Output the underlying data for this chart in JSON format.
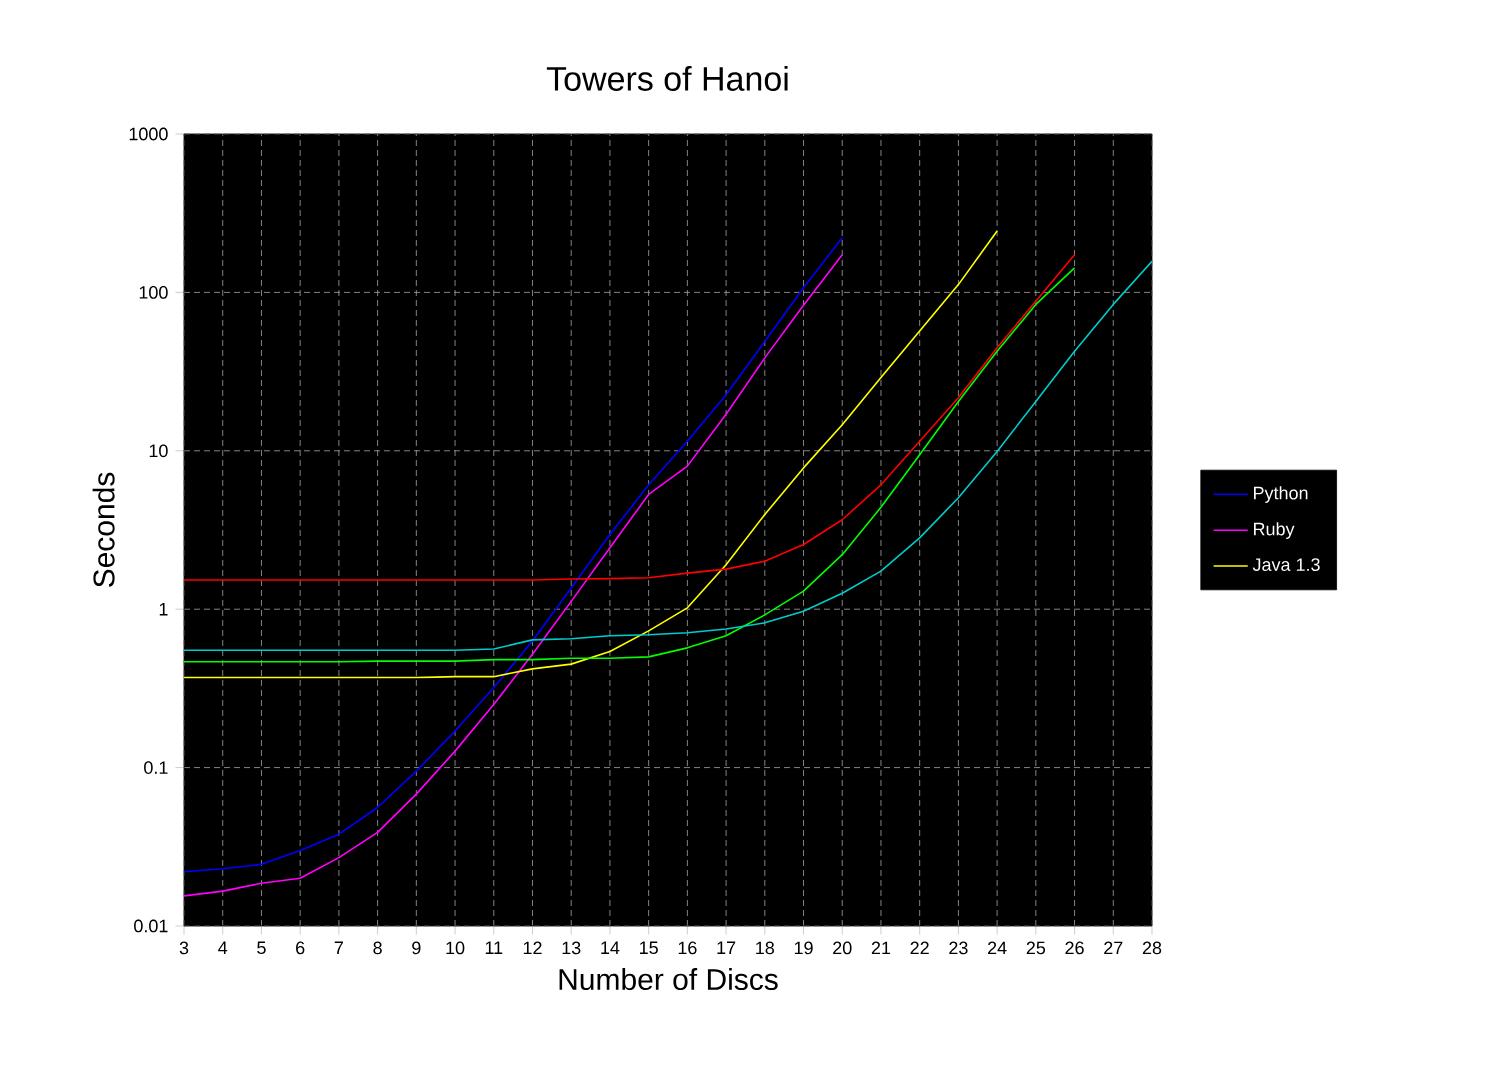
{
  "chart_data": {
    "type": "line",
    "title": "Towers of Hanoi",
    "xlabel": "Number of Discs",
    "ylabel": "Seconds",
    "x": [
      3,
      4,
      5,
      6,
      7,
      8,
      9,
      10,
      11,
      12,
      13,
      14,
      15,
      16,
      17,
      18,
      19,
      20,
      21,
      22,
      23,
      24,
      25,
      26,
      27,
      28
    ],
    "series": [
      {
        "name": "Python",
        "color": "#0000ff",
        "values": [
          0.022,
          0.023,
          0.0245,
          0.03,
          0.038,
          0.056,
          0.095,
          0.17,
          0.32,
          0.63,
          1.36,
          2.96,
          6.1,
          11.5,
          22.6,
          49,
          107,
          221,
          null,
          null,
          null,
          null,
          null,
          null,
          null,
          null
        ]
      },
      {
        "name": "Ruby",
        "color": "#ff00ff",
        "values": [
          0.0155,
          0.0166,
          0.0186,
          0.02,
          0.027,
          0.039,
          0.068,
          0.127,
          0.25,
          0.52,
          1.12,
          2.44,
          5.3,
          8,
          17,
          38.6,
          83,
          173,
          null,
          null,
          null,
          null,
          null,
          null,
          null,
          null
        ]
      },
      {
        "name": "Java 1.3",
        "color": "#ffff00",
        "values": [
          0.37,
          0.37,
          0.37,
          0.37,
          0.37,
          0.37,
          0.37,
          0.375,
          0.375,
          0.42,
          0.45,
          0.54,
          0.73,
          1.02,
          1.91,
          3.96,
          7.8,
          14.6,
          29,
          57,
          112,
          244,
          null,
          null,
          null,
          null
        ]
      },
      {
        "color": "#ff0000",
        "values": [
          1.53,
          1.53,
          1.53,
          1.53,
          1.53,
          1.53,
          1.53,
          1.53,
          1.53,
          1.53,
          1.55,
          1.56,
          1.58,
          1.69,
          1.79,
          2.01,
          2.56,
          3.67,
          6.1,
          11.5,
          21.6,
          44.7,
          88,
          173,
          null,
          null
        ]
      },
      {
        "color": "#00ff00",
        "values": [
          0.466,
          0.466,
          0.466,
          0.466,
          0.466,
          0.47,
          0.47,
          0.47,
          0.48,
          0.48,
          0.49,
          0.49,
          0.5,
          0.57,
          0.68,
          0.92,
          1.3,
          2.21,
          4.4,
          9.45,
          20.5,
          42.5,
          84,
          143,
          null,
          null
        ]
      },
      {
        "color": "#00cccc",
        "values": [
          0.55,
          0.55,
          0.55,
          0.55,
          0.55,
          0.55,
          0.55,
          0.55,
          0.56,
          0.64,
          0.65,
          0.68,
          0.69,
          0.71,
          0.75,
          0.82,
          0.97,
          1.26,
          1.74,
          2.82,
          5.05,
          9.9,
          20.5,
          42.5,
          84,
          157
        ]
      }
    ],
    "xlim": [
      3,
      28
    ],
    "xticks": [
      3,
      4,
      5,
      6,
      7,
      8,
      9,
      10,
      11,
      12,
      13,
      14,
      15,
      16,
      17,
      18,
      19,
      20,
      21,
      22,
      23,
      24,
      25,
      26,
      27,
      28
    ],
    "ylim": [
      0.01,
      1000
    ],
    "yticks": [
      0.01,
      0.1,
      1,
      10,
      100,
      1000
    ],
    "log": "y",
    "grid": true,
    "legend": "right",
    "marker": "none",
    "line_style": "solid"
  }
}
